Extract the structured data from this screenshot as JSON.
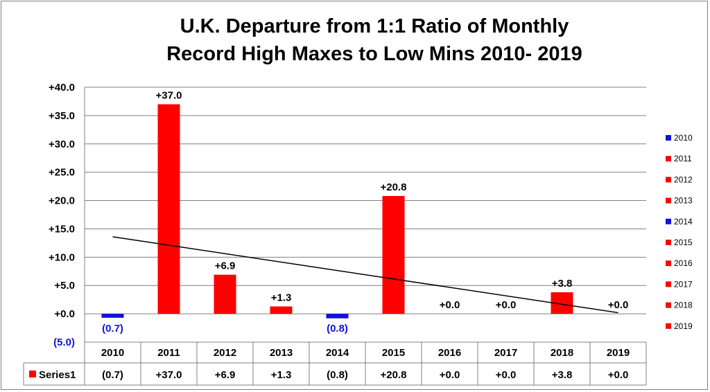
{
  "chart_data": {
    "type": "bar",
    "title": "U.K. Departure from 1:1 Ratio of Monthly Record High Maxes to Low Mins 2010- 2019",
    "title_lines": [
      "U.K. Departure from 1:1 Ratio of Monthly",
      "Record High Maxes to Low Mins 2010- 2019"
    ],
    "categories": [
      "2010",
      "2011",
      "2012",
      "2013",
      "2014",
      "2015",
      "2016",
      "2017",
      "2018",
      "2019"
    ],
    "series": [
      {
        "name": "Series1",
        "values": [
          -0.7,
          37.0,
          6.9,
          1.3,
          -0.8,
          20.8,
          0.0,
          0.0,
          3.8,
          0.0
        ],
        "labels": [
          "(0.7)",
          "+37.0",
          "+6.9",
          "+1.3",
          "(0.8)",
          "+20.8",
          "+0.0",
          "+0.0",
          "+3.8",
          "+0.0"
        ]
      }
    ],
    "ylim": [
      -5,
      40
    ],
    "yticks": [
      {
        "value": 40,
        "label": "+40.0"
      },
      {
        "value": 35,
        "label": "+35.0"
      },
      {
        "value": 30,
        "label": "+30.0"
      },
      {
        "value": 25,
        "label": "+25.0"
      },
      {
        "value": 20,
        "label": "+20.0"
      },
      {
        "value": 15,
        "label": "+15.0"
      },
      {
        "value": 10,
        "label": "+10.0"
      },
      {
        "value": 5,
        "label": "+5.0"
      },
      {
        "value": 0,
        "label": "+0.0"
      },
      {
        "value": -5,
        "label": "(5.0)"
      }
    ],
    "trendline": {
      "type": "linear",
      "start": 13.6,
      "end": 0.2
    },
    "grid": true,
    "legend": {
      "placement": "right",
      "entries": [
        {
          "label": "2010",
          "color": "#1010e0"
        },
        {
          "label": "2011",
          "color": "#ff0000"
        },
        {
          "label": "2012",
          "color": "#ff0000"
        },
        {
          "label": "2013",
          "color": "#ff0000"
        },
        {
          "label": "2014",
          "color": "#1010e0"
        },
        {
          "label": "2015",
          "color": "#ff0000"
        },
        {
          "label": "2016",
          "color": "#ff0000"
        },
        {
          "label": "2017",
          "color": "#ff0000"
        },
        {
          "label": "2018",
          "color": "#ff0000"
        },
        {
          "label": "2019",
          "color": "#ff0000"
        }
      ]
    },
    "data_table": {
      "series_label": "Series1",
      "series_color": "#ff0000"
    },
    "colors": {
      "positive": "#ff0000",
      "negative": "#1010e0",
      "trend": "#000000",
      "grid": "#7f7f7f"
    }
  }
}
